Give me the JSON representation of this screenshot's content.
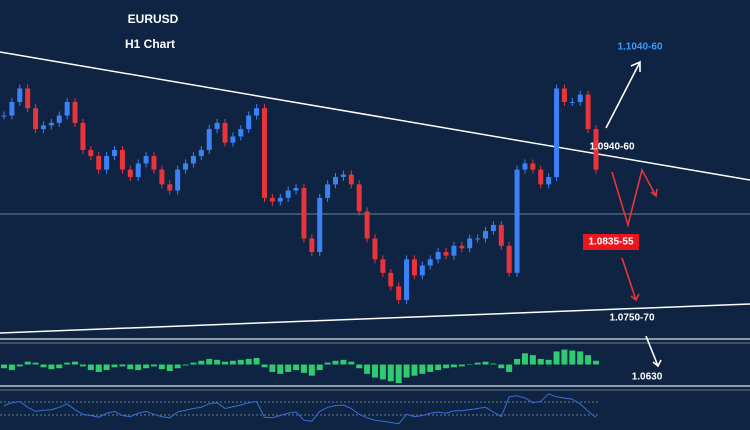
{
  "chart_data": {
    "type": "candlestick",
    "title": "EURUSD",
    "subtitle": "H1 Chart",
    "values": [
      1.091,
      1.0921,
      1.0932,
      1.0916,
      1.0899,
      1.0902,
      1.0904,
      1.091,
      1.0921,
      1.0904,
      1.0882,
      1.0877,
      1.0866,
      1.0877,
      1.0882,
      1.0866,
      1.086,
      1.0871,
      1.0877,
      1.0866,
      1.0854,
      1.0849,
      1.0866,
      1.0871,
      1.0877,
      1.0882,
      1.0899,
      1.0904,
      1.0888,
      1.0893,
      1.0899,
      1.091,
      1.0916,
      1.0843,
      1.084,
      1.0843,
      1.0849,
      1.0851,
      1.081,
      1.0799,
      1.0843,
      1.0854,
      1.086,
      1.0862,
      1.0854,
      1.0832,
      1.081,
      1.0793,
      1.0782,
      1.0771,
      1.076,
      1.0793,
      1.078,
      1.0788,
      1.0793,
      1.0799,
      1.0796,
      1.0804,
      1.0802,
      1.081,
      1.081,
      1.0816,
      1.0821,
      1.0804,
      1.0782,
      1.0866,
      1.0871,
      1.0866,
      1.0854,
      1.086,
      1.0932,
      1.0921,
      1.0921,
      1.0927,
      1.0899,
      1.0866
    ],
    "up_color": "#3b82f6",
    "down_color": "#e8343a",
    "ylim": [
      1.0729,
      1.1004
    ],
    "annotations": [
      {
        "text": "1.1040-60",
        "color": "#3b9cff"
      },
      {
        "text": "1.0940-60",
        "color": "#ffffff"
      },
      {
        "text": "1.0835-55",
        "color": "#ffffff"
      },
      {
        "text": "1.0750-70",
        "color": "#ffffff"
      },
      {
        "text": "1.0630",
        "color": "#ffffff"
      }
    ],
    "macd": {
      "color": "#2ecc71",
      "ylim": [
        -22,
        22
      ],
      "values": [
        -4,
        -6,
        -2,
        3,
        2,
        -3,
        -5,
        -4,
        2,
        3,
        -2,
        -6,
        -8,
        -6,
        -3,
        -2,
        -5,
        -6,
        -4,
        -2,
        -5,
        -7,
        -4,
        -1,
        2,
        4,
        6,
        5,
        3,
        4,
        5,
        6,
        7,
        -3,
        -8,
        -10,
        -8,
        -6,
        -9,
        -12,
        -6,
        2,
        4,
        5,
        3,
        -4,
        -10,
        -14,
        -16,
        -18,
        -20,
        -14,
        -12,
        -10,
        -8,
        -6,
        -4,
        -3,
        -2,
        0,
        2,
        3,
        1,
        -4,
        -8,
        6,
        12,
        10,
        6,
        5,
        14,
        16,
        15,
        14,
        10,
        4
      ]
    },
    "rsi": {
      "color": "#3a6fd8",
      "ylim": [
        20,
        80
      ],
      "values": [
        55,
        60,
        62,
        52,
        45,
        47,
        48,
        52,
        58,
        48,
        40,
        38,
        35,
        42,
        45,
        38,
        36,
        42,
        45,
        40,
        36,
        34,
        44,
        47,
        50,
        52,
        58,
        60,
        50,
        53,
        56,
        60,
        62,
        35,
        34,
        38,
        42,
        44,
        30,
        28,
        45,
        52,
        55,
        56,
        50,
        40,
        34,
        30,
        28,
        26,
        24,
        40,
        36,
        38,
        42,
        44,
        42,
        46,
        46,
        48,
        50,
        52,
        44,
        36,
        70,
        72,
        68,
        60,
        62,
        75,
        70,
        68,
        66,
        58,
        45,
        35
      ]
    }
  }
}
